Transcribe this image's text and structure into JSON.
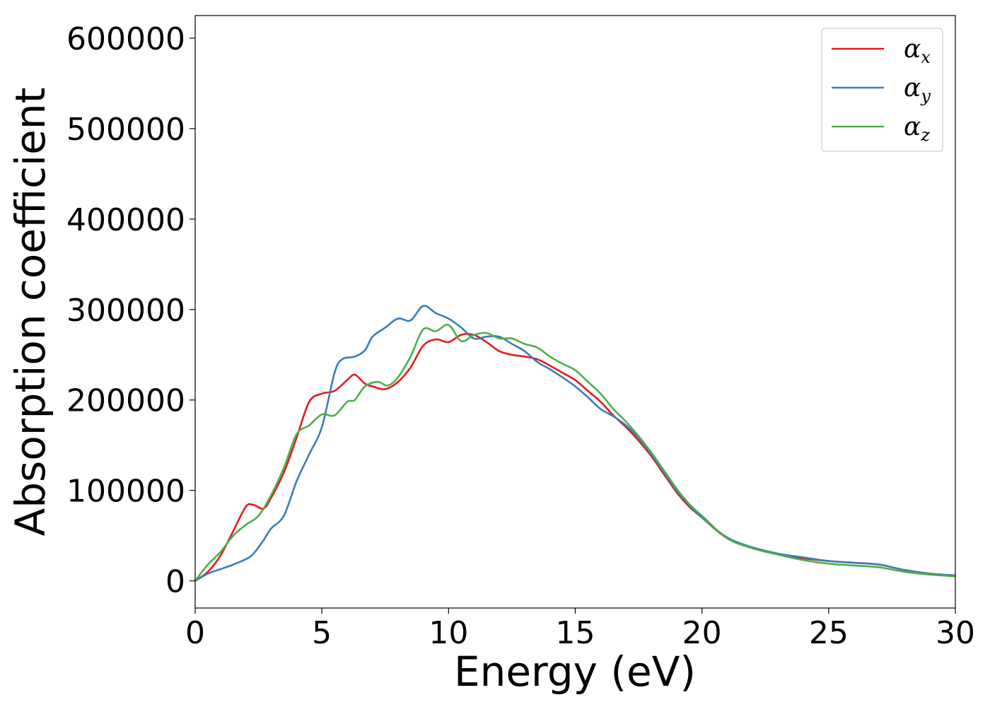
{
  "chart_data": {
    "type": "line",
    "xlabel": "Energy (eV)",
    "ylabel": "Absorption coefficient",
    "xlim": [
      0,
      30
    ],
    "ylim": [
      -30000,
      625000
    ],
    "xticks": [
      0,
      5,
      10,
      15,
      20,
      25,
      30
    ],
    "yticks": [
      0,
      100000,
      200000,
      300000,
      400000,
      500000,
      600000
    ],
    "grid": false,
    "legend_position": "top-right",
    "series": [
      {
        "name": "αx",
        "symbol": "α",
        "subscript": "x",
        "color": "#e41a1c",
        "x": [
          0,
          0.5,
          1,
          1.5,
          2,
          2.3,
          2.7,
          3,
          3.5,
          4,
          4.5,
          5,
          5.5,
          6,
          6.3,
          6.7,
          7,
          7.5,
          8,
          8.5,
          9,
          9.5,
          10,
          10.5,
          11,
          11.5,
          12,
          12.5,
          13,
          13.5,
          14,
          14.5,
          15,
          15.5,
          16,
          16.5,
          17,
          17.5,
          18,
          18.5,
          19,
          19.5,
          20,
          21,
          22,
          23,
          24,
          25,
          26,
          27,
          28,
          29,
          30
        ],
        "y": [
          0,
          10000,
          28000,
          55000,
          82000,
          84000,
          80000,
          92000,
          120000,
          158000,
          198000,
          207000,
          210000,
          222000,
          228000,
          218000,
          215000,
          212000,
          220000,
          236000,
          260000,
          267000,
          264000,
          272000,
          272000,
          264000,
          254000,
          250000,
          248000,
          245000,
          238000,
          230000,
          222000,
          210000,
          198000,
          183000,
          170000,
          155000,
          138000,
          118000,
          98000,
          82000,
          70000,
          47000,
          37000,
          30000,
          25000,
          22000,
          20000,
          18000,
          12000,
          8000,
          6000
        ]
      },
      {
        "name": "αy",
        "symbol": "α",
        "subscript": "y",
        "color": "#377eb8",
        "x": [
          0,
          0.5,
          1,
          1.5,
          2,
          2.3,
          2.7,
          3,
          3.5,
          4,
          4.5,
          5,
          5.5,
          5.8,
          6.3,
          6.7,
          7,
          7.5,
          8,
          8.5,
          9,
          9.5,
          10,
          10.5,
          11,
          11.5,
          12,
          12.5,
          13,
          13.5,
          14,
          14.5,
          15,
          15.5,
          16,
          16.5,
          17,
          17.5,
          18,
          18.5,
          19,
          19.5,
          20,
          21,
          22,
          23,
          24,
          25,
          26,
          27,
          28,
          29,
          30
        ],
        "y": [
          0,
          8000,
          13000,
          18000,
          24000,
          30000,
          45000,
          58000,
          72000,
          110000,
          140000,
          170000,
          230000,
          245000,
          248000,
          255000,
          270000,
          280000,
          290000,
          288000,
          304000,
          296000,
          290000,
          280000,
          268000,
          270000,
          270000,
          262000,
          254000,
          242000,
          234000,
          225000,
          215000,
          203000,
          190000,
          182000,
          172000,
          158000,
          140000,
          120000,
          100000,
          84000,
          70000,
          48000,
          37000,
          30000,
          26000,
          22000,
          20000,
          18000,
          12000,
          8000,
          6000
        ]
      },
      {
        "name": "αz",
        "symbol": "α",
        "subscript": "z",
        "color": "#4daf4a",
        "x": [
          0,
          0.5,
          1,
          1.5,
          2,
          2.5,
          3,
          3.5,
          4,
          4.5,
          5,
          5.5,
          6,
          6.3,
          6.7,
          7.2,
          7.6,
          8,
          8.5,
          9,
          9.5,
          10,
          10.5,
          11,
          11.5,
          12,
          12.5,
          13,
          13.5,
          14,
          14.5,
          15,
          15.5,
          16,
          16.5,
          17,
          17.5,
          18,
          18.5,
          19,
          19.5,
          20,
          21,
          22,
          23,
          24,
          25,
          26,
          27,
          28,
          29,
          30
        ],
        "y": [
          0,
          18000,
          32000,
          50000,
          62000,
          72000,
          95000,
          125000,
          162000,
          172000,
          184000,
          183000,
          198000,
          200000,
          215000,
          220000,
          216000,
          225000,
          248000,
          278000,
          276000,
          283000,
          265000,
          272000,
          274000,
          268000,
          268000,
          262000,
          258000,
          248000,
          240000,
          233000,
          220000,
          207000,
          190000,
          176000,
          160000,
          142000,
          122000,
          102000,
          85000,
          72000,
          47000,
          36000,
          29000,
          23000,
          19000,
          17000,
          15000,
          10000,
          7000,
          5000
        ]
      }
    ]
  }
}
